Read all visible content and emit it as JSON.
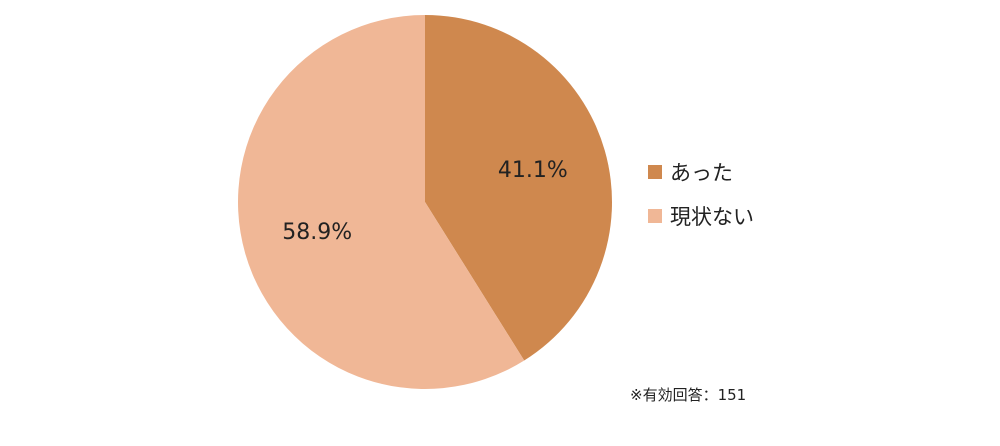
{
  "chart_data": {
    "type": "pie",
    "title": "",
    "categories": [
      "あった",
      "現状ない"
    ],
    "values": [
      41.1,
      58.9
    ],
    "value_labels": [
      "41.1%",
      "58.9%"
    ],
    "colors": [
      "#CF884E",
      "#F0B796"
    ],
    "start_angle": "12 o'clock",
    "direction": "clockwise",
    "legend_position": "right"
  },
  "footnote": "※有効回答：151"
}
